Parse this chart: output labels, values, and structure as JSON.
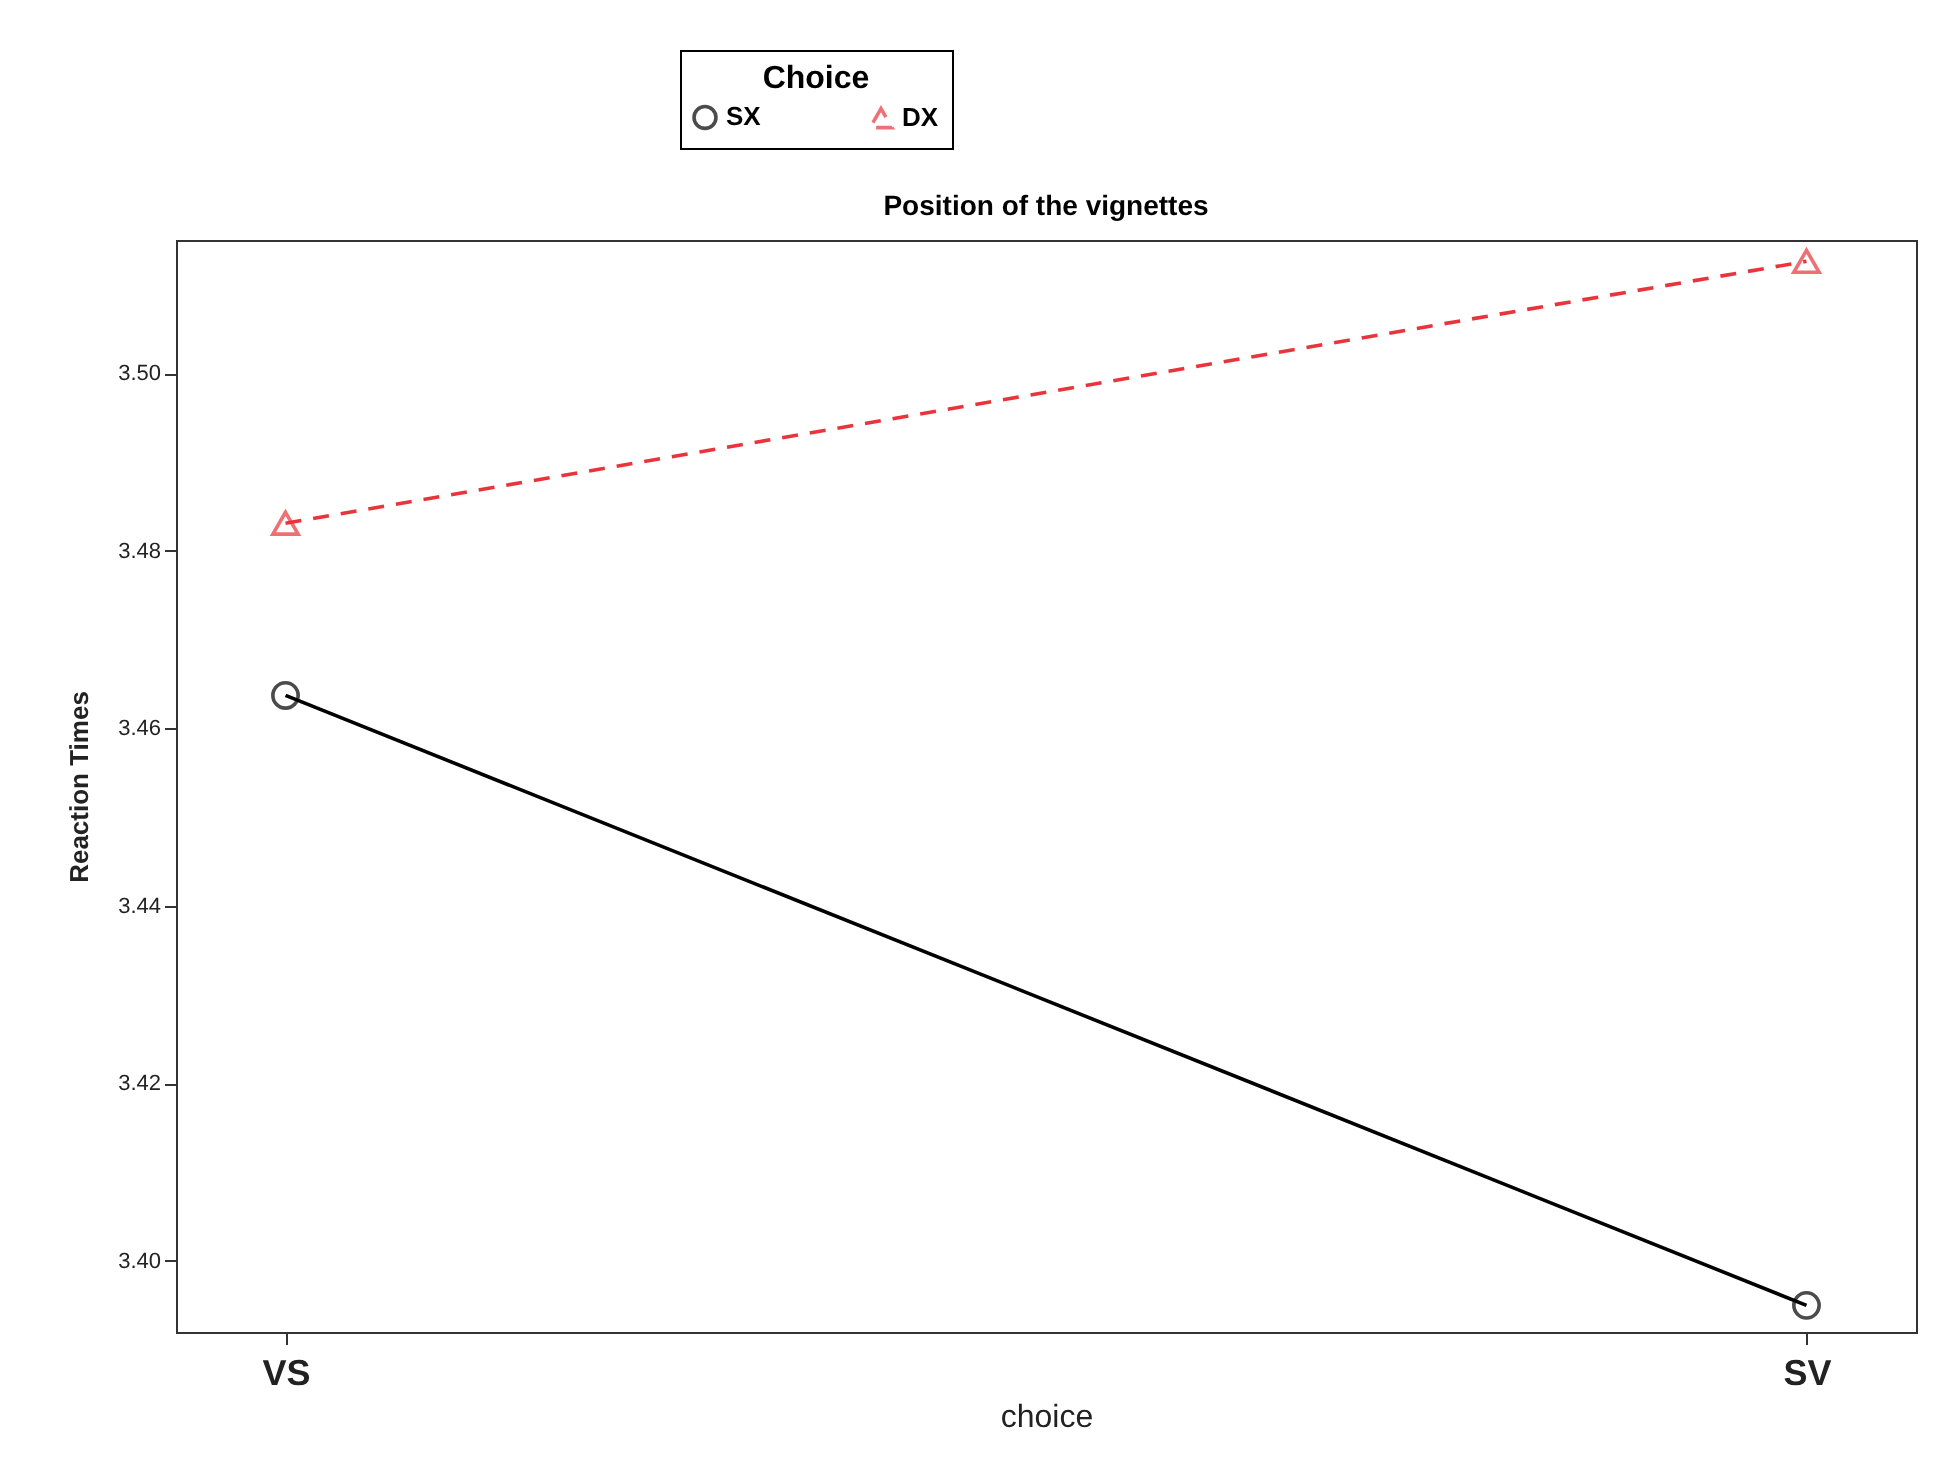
{
  "chart_data": {
    "type": "line",
    "title": "Position of the vignettes",
    "xlabel": "choice",
    "ylabel": "Reaction Times",
    "legend_title": "Choice",
    "legend": "top",
    "categories": [
      "VS",
      "SV"
    ],
    "series": [
      {
        "name": "SX",
        "color": "#000000",
        "values": [
          3.4637,
          3.395
        ],
        "marker": "circle",
        "line_style": "solid"
      },
      {
        "name": "DX",
        "color": "#e8343a",
        "values": [
          3.4831,
          3.5126
        ],
        "marker": "triangle",
        "line_style": "dashed"
      }
    ],
    "ylim": [
      3.392,
      3.515
    ],
    "yticks": [
      {
        "value": 3.4,
        "label": "3.40"
      },
      {
        "value": 3.42,
        "label": "3.42"
      },
      {
        "value": 3.44,
        "label": "3.44"
      },
      {
        "value": 3.46,
        "label": "3.46"
      },
      {
        "value": 3.48,
        "label": "3.48"
      },
      {
        "value": 3.5,
        "label": "3.50"
      }
    ]
  }
}
